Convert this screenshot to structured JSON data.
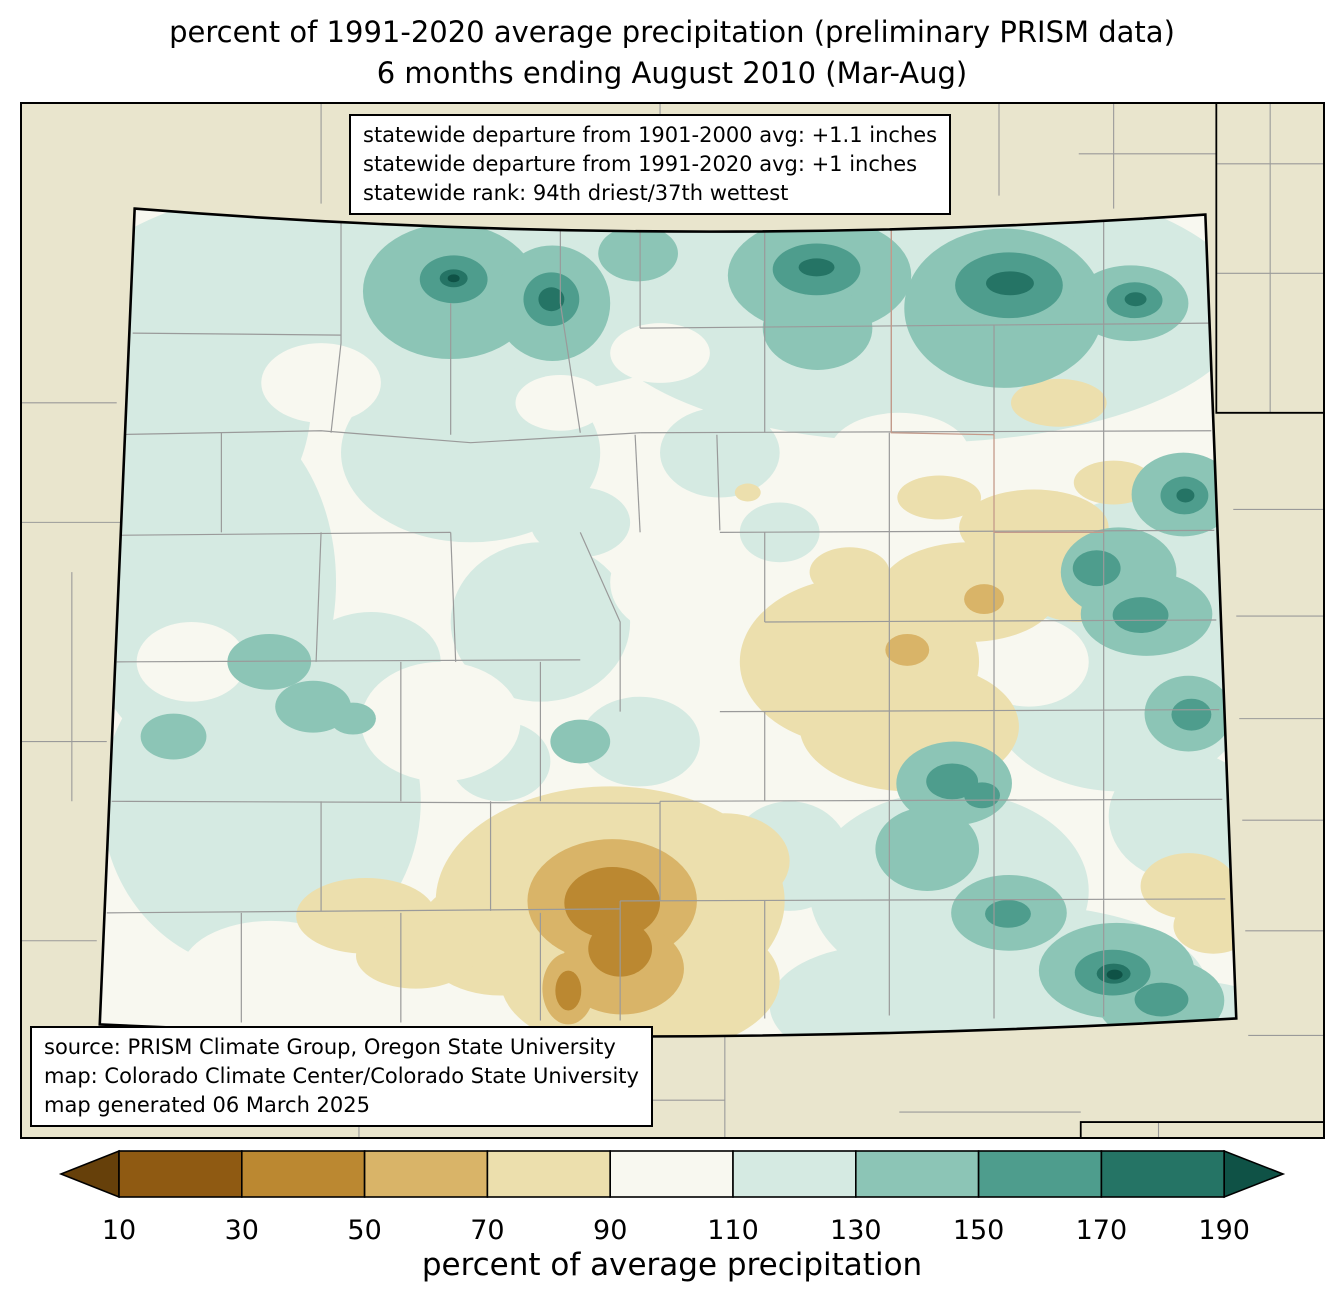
{
  "title": {
    "line1": "percent of 1991-2020 average precipitation (preliminary PRISM data)",
    "line2": "6 months ending August 2010 (Mar-Aug)"
  },
  "stats_box": {
    "line1": "statewide departure from 1901-2000 avg: +1.1 inches",
    "line2": "statewide departure from 1991-2020 avg: +1 inches",
    "line3": "statewide rank: 94th driest/37th wettest"
  },
  "source_box": {
    "line1": "source: PRISM Climate Group, Oregon State University",
    "line2": "map: Colorado Climate Center/Colorado State University",
    "line3": "map generated 06 March 2025"
  },
  "chart_data": {
    "type": "heatmap",
    "region": "Colorado",
    "title": "percent of 1991-2020 average precipitation (preliminary PRISM data)",
    "subtitle": "6 months ending August 2010 (Mar-Aug)",
    "statewide_departure_1901_2000_inches": 1.1,
    "statewide_departure_1991_2020_inches": 1,
    "statewide_rank": "94th driest/37th wettest",
    "colorbar": {
      "label": "percent of average precipitation",
      "ticks": [
        10,
        30,
        50,
        70,
        90,
        110,
        130,
        150,
        170,
        190
      ],
      "colors": [
        "#66400a",
        "#8f5a12",
        "#bb8831",
        "#d9b468",
        "#ecdfad",
        "#f8f8f0",
        "#d5eae2",
        "#8cc5b6",
        "#4e9d8d",
        "#257465",
        "#0f5246"
      ],
      "orientation": "horizontal",
      "extend": "both"
    },
    "map_colors": {
      "outside": "#e9e5cd",
      "base": "#f8f8f0",
      "county": "#9a9a9a",
      "border": "#000000"
    }
  }
}
